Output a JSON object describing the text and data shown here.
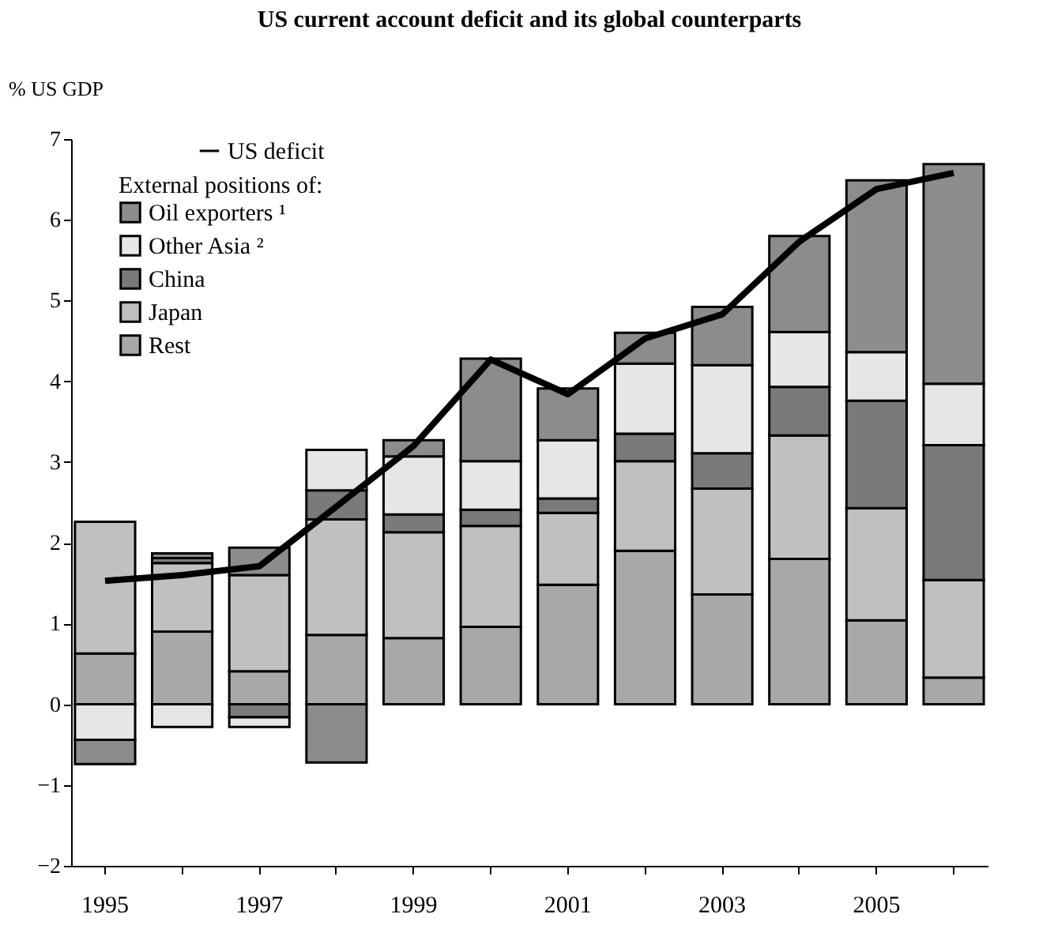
{
  "chart_data": {
    "type": "bar",
    "stacked": true,
    "title": "US current account deficit and its global counterparts",
    "ylabel": "% US GDP",
    "legend_title": "External positions of:",
    "categories": [
      "1995",
      null,
      "1997",
      null,
      "1999",
      null,
      "2001",
      null,
      "2003",
      null,
      "2005",
      null
    ],
    "series": [
      {
        "name": "Rest",
        "color": "#a8a8a8",
        "values": [
          0.63,
          0.9,
          0.41,
          0.86,
          0.82,
          0.96,
          1.48,
          1.9,
          1.36,
          1.8,
          1.04,
          0.33
        ]
      },
      {
        "name": "Japan",
        "color": "#c0c0c0",
        "values": [
          1.63,
          0.85,
          1.19,
          1.43,
          1.31,
          1.25,
          0.89,
          1.11,
          1.31,
          1.53,
          1.39,
          1.21
        ]
      },
      {
        "name": "China",
        "color": "#7a7a7a",
        "values": [
          null,
          0.06,
          -0.16,
          0.36,
          0.22,
          0.2,
          0.18,
          0.34,
          0.44,
          0.6,
          1.33,
          1.67
        ]
      },
      {
        "name": "Other Asia ²",
        "color": "#e6e6e6",
        "values": [
          -0.44,
          -0.28,
          -0.12,
          0.5,
          0.72,
          0.6,
          0.72,
          0.87,
          1.09,
          0.68,
          0.6,
          0.76
        ]
      },
      {
        "name": "Oil exporters ¹",
        "color": "#8c8c8c",
        "values": [
          -0.3,
          0.06,
          0.34,
          -0.72,
          0.2,
          1.27,
          0.64,
          0.38,
          0.72,
          1.19,
          2.13,
          2.72
        ]
      },
      {
        "name": "US deficit",
        "type": "line",
        "color": "#000000",
        "values": [
          1.53,
          1.6,
          1.71,
          2.45,
          3.2,
          4.27,
          3.84,
          4.53,
          4.83,
          5.73,
          6.38,
          6.58
        ]
      }
    ],
    "ylim": [
      -2,
      7
    ],
    "yticks": [
      -2,
      -1,
      0,
      1,
      2,
      3,
      4,
      5,
      6,
      7
    ],
    "grid": false,
    "legend": "top left"
  }
}
